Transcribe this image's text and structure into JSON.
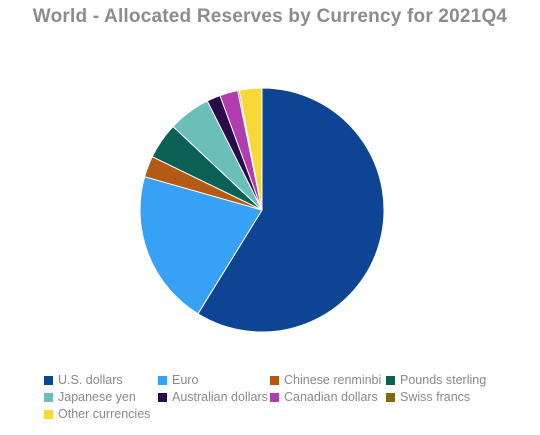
{
  "chart_data": {
    "type": "pie",
    "title": "World - Allocated Reserves by Currency for 2021Q4",
    "slices": [
      {
        "label": "U.S. dollars",
        "value": 58.8,
        "color": "#0d4594"
      },
      {
        "label": "Euro",
        "value": 20.6,
        "color": "#36a1f5"
      },
      {
        "label": "Chinese renminbi",
        "value": 2.8,
        "color": "#b45a14"
      },
      {
        "label": "Pounds sterling",
        "value": 4.8,
        "color": "#0b6055"
      },
      {
        "label": "Japanese yen",
        "value": 5.6,
        "color": "#6ac0b8"
      },
      {
        "label": "Australian dollars",
        "value": 1.8,
        "color": "#2a0a4a"
      },
      {
        "label": "Canadian dollars",
        "value": 2.4,
        "color": "#b03cb0"
      },
      {
        "label": "Swiss francs",
        "value": 0.2,
        "color": "#7e6a10"
      },
      {
        "label": "Other currencies",
        "value": 3.0,
        "color": "#f8d838"
      }
    ],
    "legend_position": "bottom"
  }
}
